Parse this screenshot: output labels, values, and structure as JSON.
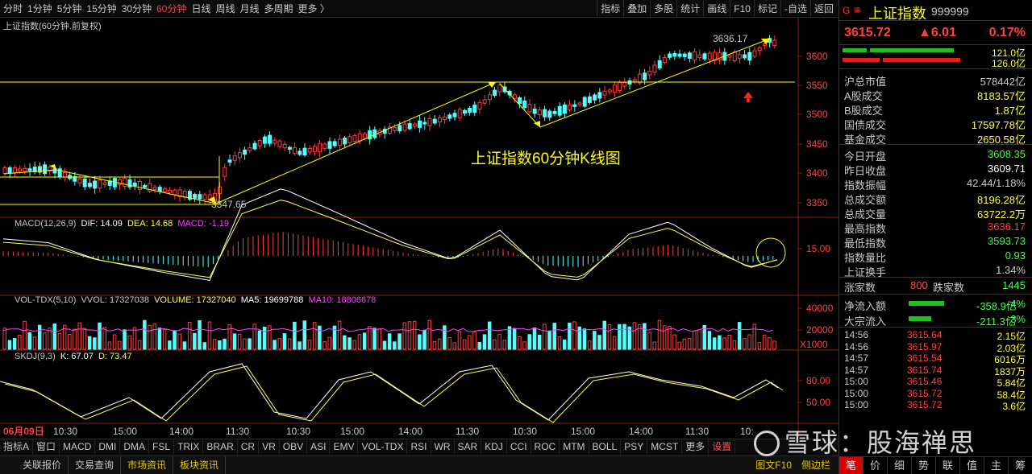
{
  "toolbar": {
    "periods": [
      "分时",
      "1分钟",
      "5分钟",
      "15分钟",
      "30分钟",
      "60分钟",
      "日线",
      "周线",
      "月线",
      "多周期",
      "更多 〉"
    ],
    "active_period": "60分钟",
    "tools": [
      "指标",
      "叠加",
      "多股",
      "统计",
      "画线",
      "F10",
      "标记",
      "-自选",
      "返回"
    ]
  },
  "main_chart": {
    "title": "上证指数(60分钟.前复权)",
    "annotation": "上证指数60分钟K线图",
    "high_label": "3636.17",
    "low_label": "3347.65",
    "price_axis": [
      "3600",
      "3550",
      "3500",
      "3450",
      "3400",
      "3350"
    ]
  },
  "macd": {
    "name": "MACD(12,26,9)",
    "dif": "DIF: 14.09",
    "dea": "DEA: 14.68",
    "macd": "MACD: -1.19",
    "axis": [
      "15.00"
    ]
  },
  "vol": {
    "name": "VOL-TDX(5,10)",
    "vvol": "VVOL: 17327038",
    "volume": "VOLUME: 17327040",
    "ma5": "MA5: 19699788",
    "ma10": "MA10: 18806678",
    "axis": [
      "40000",
      "20000",
      "X1000"
    ]
  },
  "skdj": {
    "name": "SKDJ(9,3)",
    "k": "K: 67.07",
    "d": "D: 73.47",
    "axis": [
      "80.00",
      "50.00"
    ]
  },
  "time_axis": [
    "06月09日",
    "10:30",
    "15:00",
    "14:00",
    "11:30",
    "10:30",
    "15:00",
    "14:00",
    "11:30",
    "10:30",
    "15:00",
    "14:00",
    "11:30",
    "10:"
  ],
  "indicator_tabs": [
    "指标A",
    "窗口",
    "MACD",
    "DMI",
    "DMA",
    "FSL",
    "TRIX",
    "BRAR",
    "CR",
    "VR",
    "OBV",
    "ASI",
    "EMV",
    "VOL-TDX",
    "RSI",
    "WR",
    "SAR",
    "KDJ",
    "CCI",
    "ROC",
    "MTM",
    "BOLL",
    "PSY",
    "MCST",
    "更多",
    "设置"
  ],
  "status_tabs": [
    "关联报价",
    "交易查询",
    "市场资讯",
    "板块资讯"
  ],
  "status_right": [
    "图文F10",
    "侧边栏"
  ],
  "quote": {
    "name": "上证指数",
    "code": "999999",
    "price": "3615.72",
    "change": "▲6.01",
    "pct": "0.17%",
    "bar1": "121.0亿",
    "bar2": "126.0亿",
    "rows1": [
      {
        "k": "沪总市值",
        "v": "578442亿",
        "c": "#c8c8c8"
      },
      {
        "k": "A股成交",
        "v": "8183.57亿",
        "c": "#ffff40"
      },
      {
        "k": "B股成交",
        "v": "1.87亿",
        "c": "#ffff40"
      },
      {
        "k": "国债成交",
        "v": "17597.78亿",
        "c": "#ffff40"
      },
      {
        "k": "基金成交",
        "v": "2650.58亿",
        "c": "#ffff40"
      }
    ],
    "rows2": [
      {
        "k": "今日开盘",
        "v": "3608.35",
        "c": "#40ff40"
      },
      {
        "k": "昨日收盘",
        "v": "3609.71",
        "c": "#ffffff"
      },
      {
        "k": "指数振幅",
        "v": "42.44/1.18%",
        "c": "#c8c8c8"
      },
      {
        "k": "总成交额",
        "v": "8196.28亿",
        "c": "#ffff40"
      },
      {
        "k": "总成交量",
        "v": "63722.2万",
        "c": "#ffff40"
      },
      {
        "k": "最高指数",
        "v": "3636.17",
        "c": "#ff4040"
      },
      {
        "k": "最低指数",
        "v": "3593.73",
        "c": "#40ff40"
      },
      {
        "k": "指数量比",
        "v": "0.93",
        "c": "#40ff40"
      },
      {
        "k": "上证换手",
        "v": "1.34%",
        "c": "#c8c8c8"
      }
    ],
    "up_label": "涨家数",
    "up": "800",
    "down_label": "跌家数",
    "down": "1445",
    "flow": [
      {
        "k": "净流入额",
        "v": "-358.9亿",
        "p": "-4%",
        "w": 0.55
      },
      {
        "k": "大宗流入",
        "v": "-211.3亿",
        "p": "-3%",
        "w": 0.35
      }
    ],
    "trades": [
      {
        "t": "14:56",
        "p": "3615.64",
        "q": "2.15亿"
      },
      {
        "t": "14:56",
        "p": "3615.97",
        "q": "2.03亿"
      },
      {
        "t": "14:57",
        "p": "3615.54",
        "q": "6016万"
      },
      {
        "t": "14:57",
        "p": "3615.74",
        "q": "1837万"
      },
      {
        "t": "15:00",
        "p": "3615.46",
        "q": "5.84亿"
      },
      {
        "t": "15:00",
        "p": "3615.72",
        "q": "58.4亿"
      },
      {
        "t": "15:00",
        "p": "3615.72",
        "q": "3.6亿"
      }
    ],
    "tabs": [
      "笔",
      "价",
      "细",
      "势",
      "联",
      "值",
      "主",
      "筹"
    ]
  },
  "watermark": "雪球：股海禅思"
}
